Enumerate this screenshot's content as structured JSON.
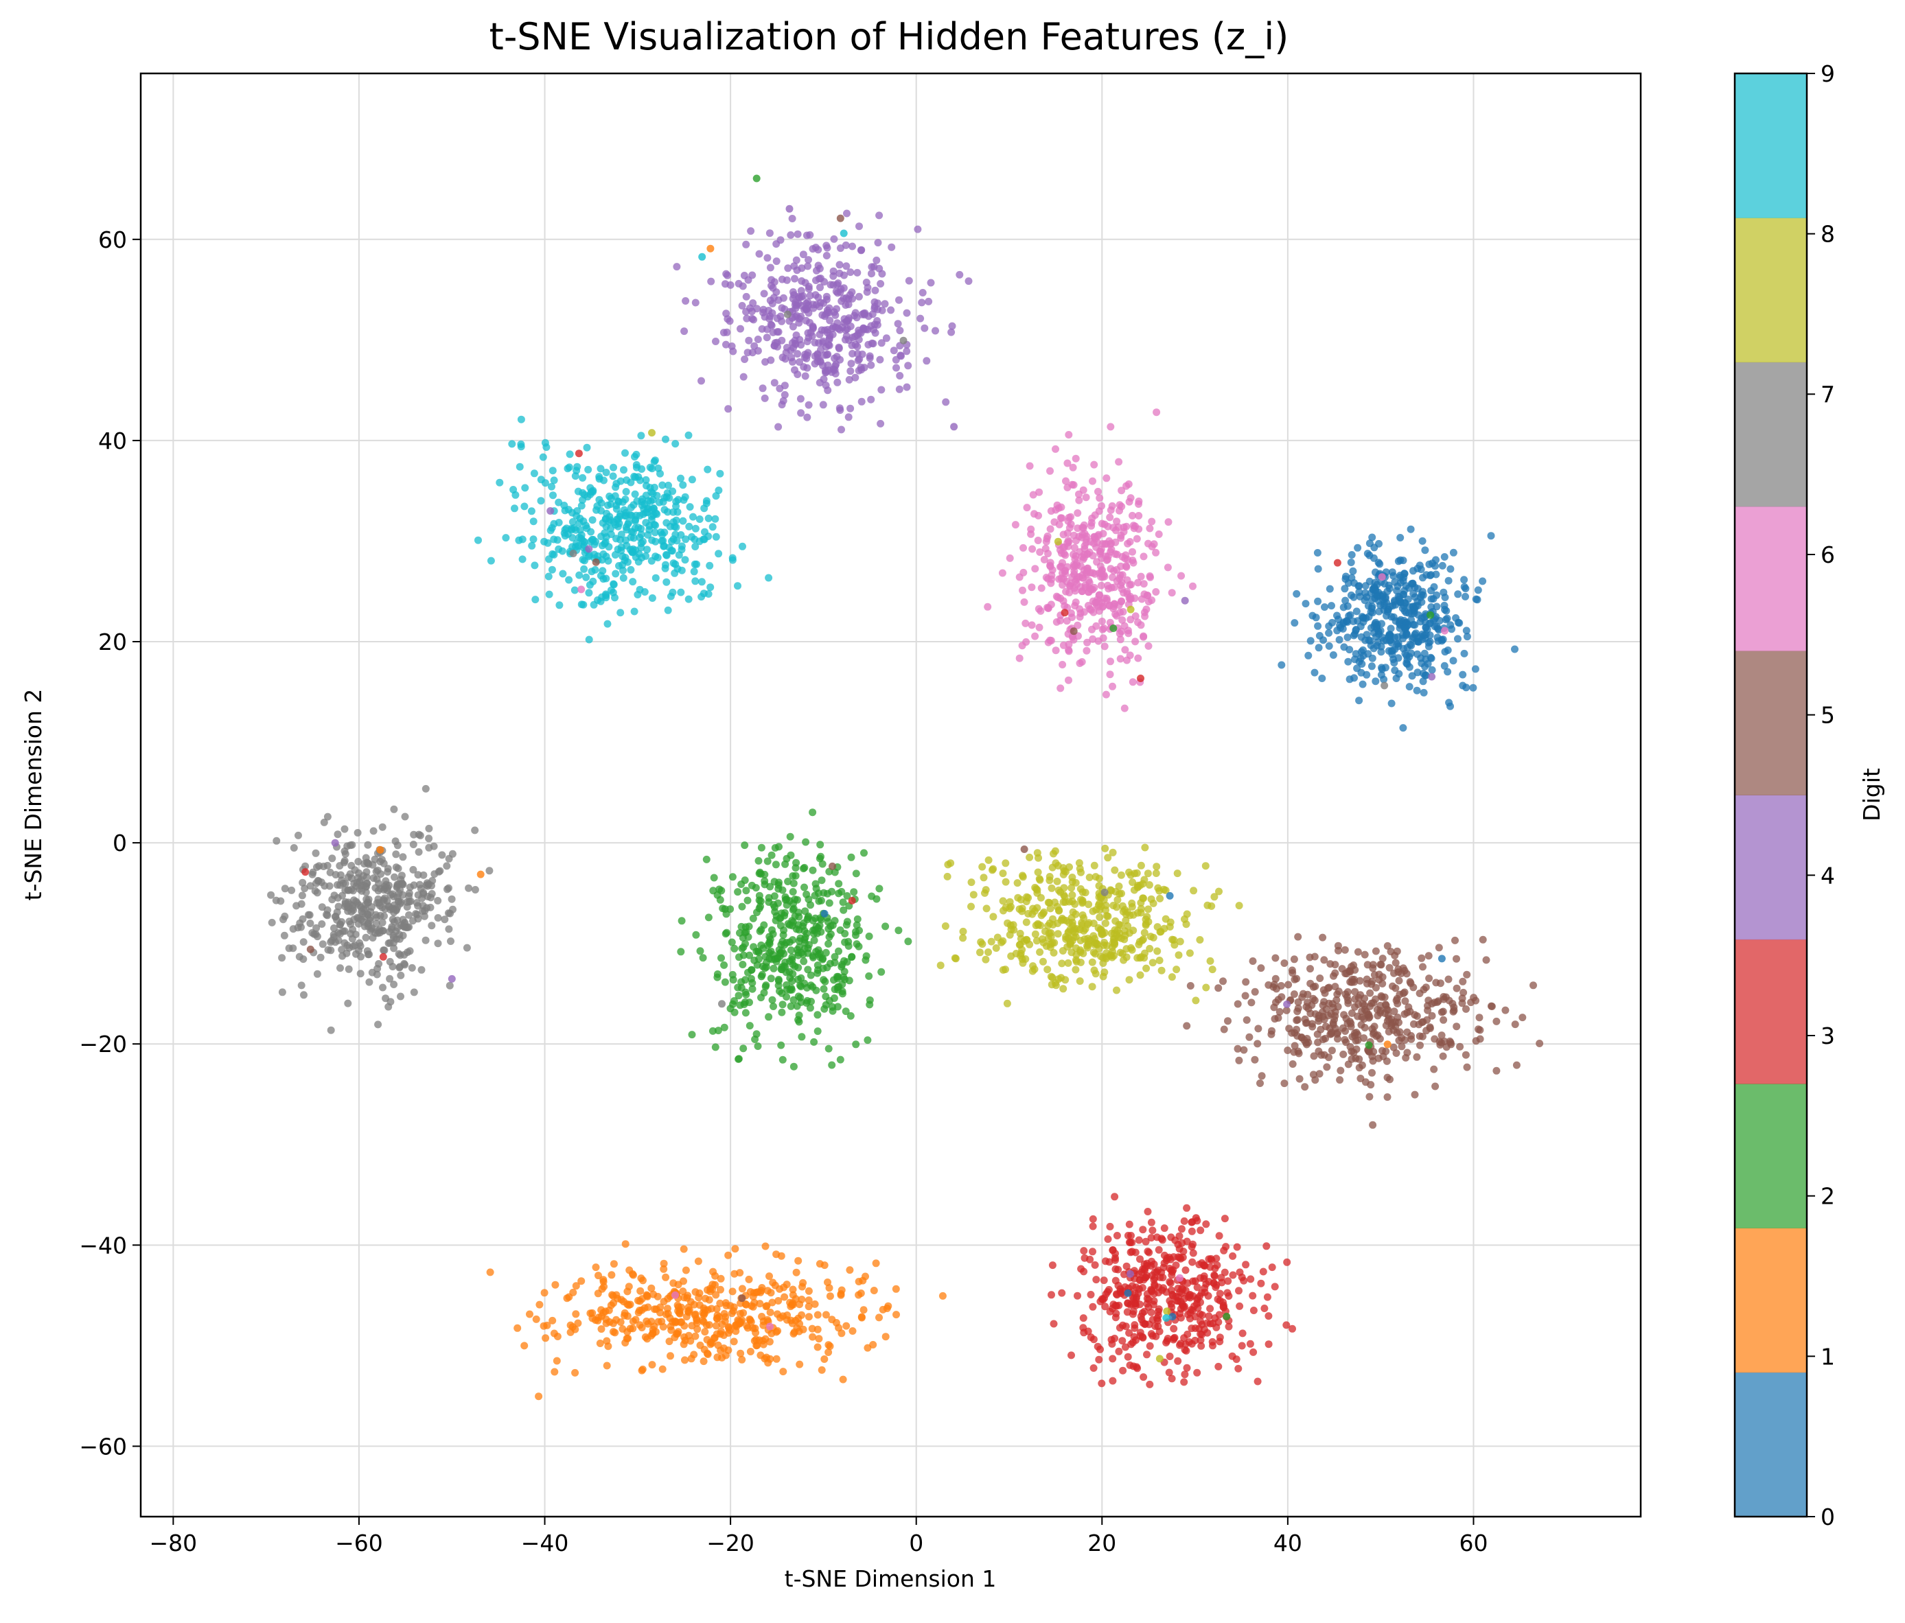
{
  "chart_data": {
    "type": "scatter",
    "title": "t-SNE Visualization of Hidden Features (z_i)",
    "xlabel": "t-SNE Dimension 1",
    "ylabel": "t-SNE Dimension 2",
    "xlim": [
      -83.5,
      78
    ],
    "ylim": [
      -67,
      76.5
    ],
    "xticks": [
      -80,
      -60,
      -40,
      -20,
      0,
      20,
      40,
      60
    ],
    "yticks": [
      -60,
      -40,
      -20,
      0,
      20,
      40,
      60
    ],
    "grid": true,
    "colorbar": {
      "label": "Digit",
      "ticks": [
        0,
        1,
        2,
        3,
        4,
        5,
        6,
        7,
        8,
        9
      ],
      "colors": [
        "#1f77b4",
        "#ff7f0e",
        "#2ca02c",
        "#d62728",
        "#9467bd",
        "#8c564b",
        "#e377c2",
        "#7f7f7f",
        "#bcbd22",
        "#17becf"
      ]
    },
    "clusters": [
      {
        "digit": 0,
        "center": [
          52,
          22
        ],
        "spread": [
          8,
          6.5
        ]
      },
      {
        "digit": 1,
        "center": [
          -22,
          -47
        ],
        "spread": [
          17,
          4.5
        ]
      },
      {
        "digit": 2,
        "center": [
          -13,
          -10
        ],
        "spread": [
          8,
          9
        ]
      },
      {
        "digit": 3,
        "center": [
          27,
          -45
        ],
        "spread": [
          9,
          7
        ]
      },
      {
        "digit": 4,
        "center": [
          -10,
          52
        ],
        "spread": [
          10,
          8
        ]
      },
      {
        "digit": 5,
        "center": [
          48,
          -17
        ],
        "spread": [
          13,
          6
        ]
      },
      {
        "digit": 6,
        "center": [
          19,
          27
        ],
        "spread": [
          7,
          9
        ]
      },
      {
        "digit": 7,
        "center": [
          -59,
          -6
        ],
        "spread": [
          8,
          7
        ]
      },
      {
        "digit": 8,
        "center": [
          18,
          -8
        ],
        "spread": [
          11,
          6
        ]
      },
      {
        "digit": 9,
        "center": [
          -32,
          31
        ],
        "spread": [
          10,
          7
        ]
      }
    ]
  }
}
